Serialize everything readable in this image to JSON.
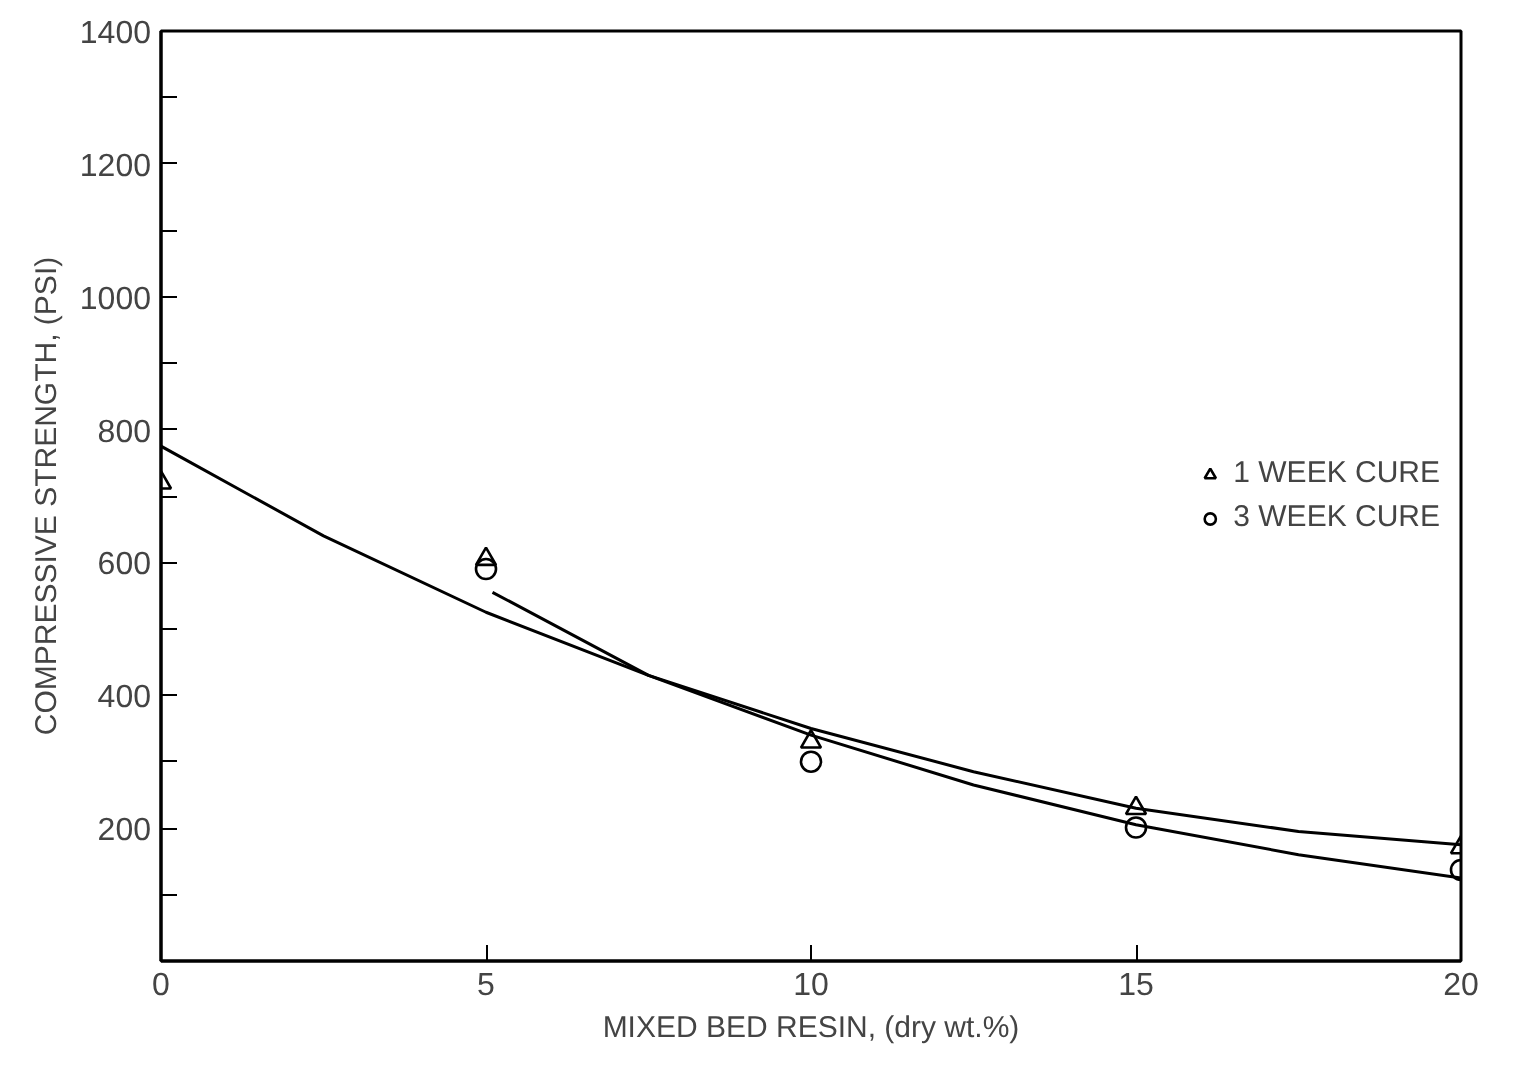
{
  "chart_data": {
    "type": "scatter",
    "xlabel": "MIXED BED RESIN, (dry wt.%)",
    "ylabel": "COMPRESSIVE STRENGTH, (PSI)",
    "x": [
      0,
      5,
      10,
      15,
      20
    ],
    "series": [
      {
        "name": "1 WEEK CURE",
        "color": "#000000",
        "marker": "triangle",
        "values": [
          720,
          605,
          330,
          230,
          171
        ]
      },
      {
        "name": "3 WEEK CURE",
        "color": "#000000",
        "marker": "circle",
        "values": [
          null,
          590,
          300,
          201,
          137
        ]
      },
      {
        "type": "line",
        "color": "#000000",
        "x": [
          0,
          2.5,
          5,
          7.5,
          10,
          12.5,
          15,
          17.5,
          20
        ],
        "values": [
          775,
          640,
          525,
          430,
          350,
          285,
          230,
          195,
          175
        ]
      },
      {
        "type": "line",
        "color": "#000000",
        "x": [
          5.1,
          7.5,
          10,
          12.5,
          15,
          17.5,
          20
        ],
        "values": [
          555,
          430,
          340,
          265,
          205,
          160,
          125
        ]
      }
    ],
    "xlim": [
      0,
      20
    ],
    "ylim": [
      0,
      1400
    ],
    "xticks": [
      0,
      5,
      10,
      15,
      20
    ],
    "yticks": [
      {
        "value": 100,
        "label": null
      },
      200,
      {
        "value": 300,
        "label": null
      },
      400,
      {
        "value": 500,
        "label": null
      },
      600,
      {
        "value": 700,
        "label": null
      },
      800,
      {
        "value": 900,
        "label": null
      },
      1000,
      {
        "value": 1100,
        "label": null
      },
      1200,
      {
        "value": 1300,
        "label": null
      },
      1400
    ],
    "legend": "right",
    "grid": false
  }
}
